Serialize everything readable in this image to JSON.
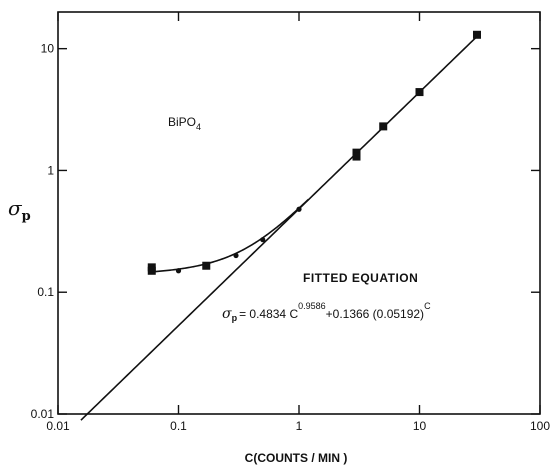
{
  "chart_data": {
    "type": "line",
    "title": "",
    "xlabel": "C(COUNTS / MIN )",
    "ylabel_symbol": "σ",
    "ylabel_subscript": "p",
    "xscale": "log",
    "yscale": "log",
    "xlim": [
      0.01,
      100
    ],
    "ylim": [
      0.01,
      20
    ],
    "grid": false,
    "x_ticks": [
      0.01,
      0.1,
      1,
      10,
      100
    ],
    "x_tick_labels": [
      "0.01",
      "0.1",
      "1",
      "10",
      "100"
    ],
    "y_ticks": [
      0.01,
      0.1,
      1,
      10
    ],
    "y_tick_labels": [
      "0.01",
      "0.1",
      "1",
      "10"
    ],
    "annotation_text": "BiPO",
    "annotation_subscript": "4",
    "equation_heading": "FITTED EQUATION",
    "equation": {
      "lhs_symbol": "σ",
      "lhs_subscript": "p",
      "equals": "= 0.4834 C",
      "exp1": "0.9586",
      "middle": "+0.1366 (0.05192)",
      "exp2": "C"
    },
    "series": [
      {
        "points": [
          {
            "x": 0.06,
            "y": 0.16,
            "marker": "square"
          },
          {
            "x": 0.06,
            "y": 0.15,
            "marker": "square"
          },
          {
            "x": 0.1,
            "y": 0.15,
            "marker": "dot"
          },
          {
            "x": 0.17,
            "y": 0.165,
            "marker": "square"
          },
          {
            "x": 0.3,
            "y": 0.2,
            "marker": "dot"
          },
          {
            "x": 0.5,
            "y": 0.27,
            "marker": "dot"
          },
          {
            "x": 1.0,
            "y": 0.48,
            "marker": "dot"
          },
          {
            "x": 3.0,
            "y": 1.4,
            "marker": "square"
          },
          {
            "x": 3.0,
            "y": 1.3,
            "marker": "square"
          },
          {
            "x": 5.0,
            "y": 2.3,
            "marker": "square"
          },
          {
            "x": 10.0,
            "y": 4.4,
            "marker": "square"
          },
          {
            "x": 30.0,
            "y": 13.0,
            "marker": "square"
          }
        ]
      }
    ]
  }
}
